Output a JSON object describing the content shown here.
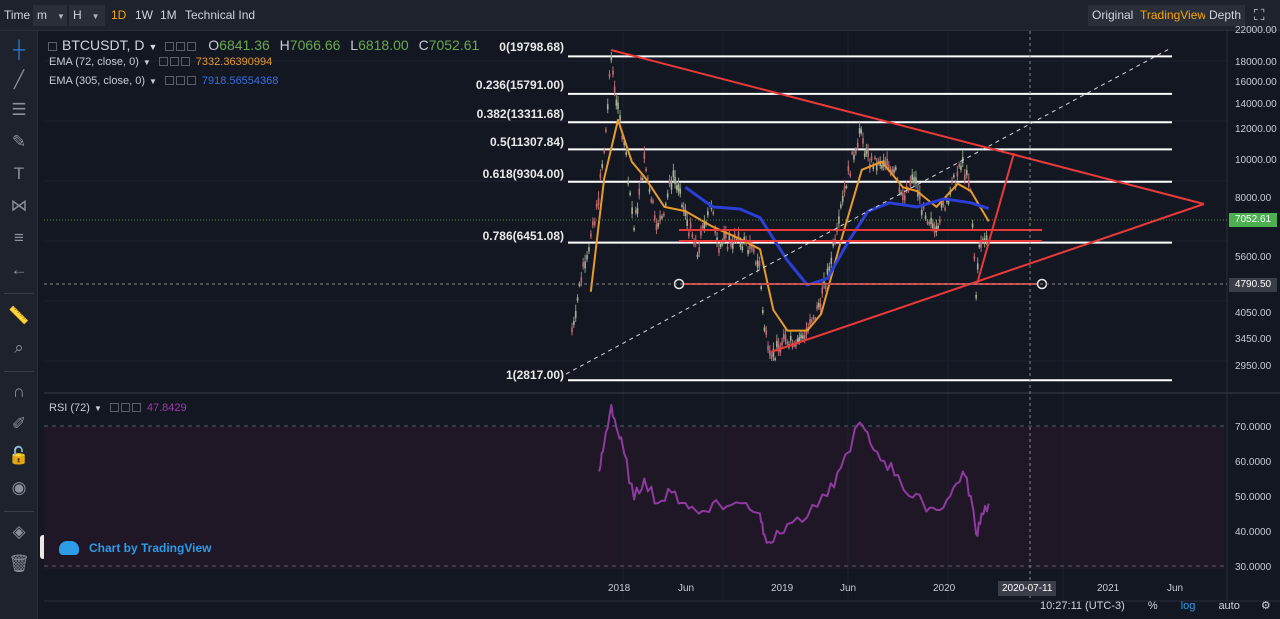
{
  "toolbar": {
    "time": "Time",
    "interval_minute": "m",
    "interval_hour": "H",
    "interval_day": "1D",
    "interval_week": "1W",
    "interval_month": "1M",
    "indicators": "Technical Ind",
    "view_original": "Original",
    "view_tradingview": "TradingView",
    "view_depth": "Depth"
  },
  "legend": {
    "symbol": "BTCUSDT, D",
    "open_label": "O",
    "open_value": "6841.36",
    "high_label": "H",
    "high_value": "7066.66",
    "low_label": "L",
    "low_value": "6818.00",
    "close_label": "C",
    "close_value": "7052.61",
    "ema1_label": "EMA (72, close, 0)",
    "ema1_value": "7332.36390994",
    "ema2_label": "EMA (305, close, 0)",
    "ema2_value": "7918.56554368",
    "rsi_label": "RSI (72)",
    "rsi_value": "47.8429"
  },
  "fib_labels": [
    "0(19798.68)",
    "0.236(15791.00)",
    "0.382(13311.68)",
    "0.5(11307.84)",
    "0.618(9304.00)",
    "0.786(6451.08)",
    "1(2817.00)"
  ],
  "price_axis": [
    "22000.00",
    "18000.00",
    "16000.00",
    "14000.00",
    "12000.00",
    "10000.00",
    "8000.00",
    "5600.00",
    "4050.00",
    "3450.00",
    "2950.00"
  ],
  "rsi_axis": [
    "70.0000",
    "60.0000",
    "50.0000",
    "40.0000",
    "30.0000"
  ],
  "time_axis": [
    "2018",
    "Jun",
    "2019",
    "Jun",
    "2020",
    "2021",
    "Jun"
  ],
  "last_price": "7052.61",
  "crosshair_price": "4790.50",
  "crosshair_date": "2020-07-11",
  "watermark": "Chart by TradingView",
  "status": {
    "clock": "10:27:11 (UTC-3)",
    "percent": "%",
    "log": "log",
    "auto": "auto"
  },
  "colors": {
    "background": "#131722",
    "ema72": "#e89b2c",
    "ema305": "#2b3fd6",
    "fib": "#ffffff",
    "trendlines": "#e83a3a",
    "rsi": "#8e3a9e",
    "last_price_tag": "#4caf50",
    "active_text": "#f7a600"
  },
  "chart_data": {
    "type": "candlestick",
    "y_scale": "log",
    "ylim": [
      2600,
      22000
    ],
    "x_range": [
      "2017-08",
      "2021-07"
    ],
    "price_series": [
      {
        "x": "2017-09-20",
        "close": 3800
      },
      {
        "x": "2017-10-15",
        "close": 5600
      },
      {
        "x": "2017-11-10",
        "close": 7200
      },
      {
        "x": "2017-12-01",
        "close": 11000
      },
      {
        "x": "2017-12-17",
        "close": 19500
      },
      {
        "x": "2018-01-01",
        "close": 14000
      },
      {
        "x": "2018-01-15",
        "close": 12000
      },
      {
        "x": "2018-02-06",
        "close": 7000
      },
      {
        "x": "2018-03-01",
        "close": 10500
      },
      {
        "x": "2018-04-01",
        "close": 7000
      },
      {
        "x": "2018-05-05",
        "close": 9700
      },
      {
        "x": "2018-06-01",
        "close": 7500
      },
      {
        "x": "2018-06-28",
        "close": 6000
      },
      {
        "x": "2018-07-25",
        "close": 8200
      },
      {
        "x": "2018-08-15",
        "close": 6400
      },
      {
        "x": "2018-09-15",
        "close": 6500
      },
      {
        "x": "2018-10-15",
        "close": 6400
      },
      {
        "x": "2018-11-14",
        "close": 5600
      },
      {
        "x": "2018-11-25",
        "close": 3800
      },
      {
        "x": "2018-12-15",
        "close": 3250
      },
      {
        "x": "2019-01-15",
        "close": 3600
      },
      {
        "x": "2019-02-15",
        "close": 3600
      },
      {
        "x": "2019-03-15",
        "close": 4000
      },
      {
        "x": "2019-04-15",
        "close": 5200
      },
      {
        "x": "2019-05-15",
        "close": 8200
      },
      {
        "x": "2019-06-26",
        "close": 12500
      },
      {
        "x": "2019-07-15",
        "close": 10500
      },
      {
        "x": "2019-08-15",
        "close": 10100
      },
      {
        "x": "2019-09-15",
        "close": 10200
      },
      {
        "x": "2019-10-01",
        "close": 8200
      },
      {
        "x": "2019-10-26",
        "close": 9500
      },
      {
        "x": "2019-11-25",
        "close": 7000
      },
      {
        "x": "2019-12-15",
        "close": 7200
      },
      {
        "x": "2020-01-15",
        "close": 8800
      },
      {
        "x": "2020-02-12",
        "close": 10300
      },
      {
        "x": "2020-03-01",
        "close": 8600
      },
      {
        "x": "2020-03-13",
        "close": 4800
      },
      {
        "x": "2020-03-20",
        "close": 6200
      },
      {
        "x": "2020-04-01",
        "close": 6600
      },
      {
        "x": "2020-04-10",
        "close": 7052.61
      }
    ],
    "ema72": [
      {
        "x": "2017-11-01",
        "close": 4800
      },
      {
        "x": "2017-12-01",
        "close": 9500
      },
      {
        "x": "2018-01-01",
        "close": 13500
      },
      {
        "x": "2018-02-01",
        "close": 10500
      },
      {
        "x": "2018-03-01",
        "close": 9600
      },
      {
        "x": "2018-04-15",
        "close": 8000
      },
      {
        "x": "2018-06-01",
        "close": 7800
      },
      {
        "x": "2018-08-01",
        "close": 7100
      },
      {
        "x": "2018-10-01",
        "close": 6600
      },
      {
        "x": "2018-11-15",
        "close": 6200
      },
      {
        "x": "2018-12-15",
        "close": 4300
      },
      {
        "x": "2019-01-15",
        "close": 3800
      },
      {
        "x": "2019-03-01",
        "close": 3800
      },
      {
        "x": "2019-04-01",
        "close": 4200
      },
      {
        "x": "2019-05-15",
        "close": 6500
      },
      {
        "x": "2019-07-01",
        "close": 10000
      },
      {
        "x": "2019-08-15",
        "close": 10500
      },
      {
        "x": "2019-10-01",
        "close": 9000
      },
      {
        "x": "2019-11-01",
        "close": 8800
      },
      {
        "x": "2019-12-15",
        "close": 8000
      },
      {
        "x": "2020-02-01",
        "close": 9200
      },
      {
        "x": "2020-03-01",
        "close": 8800
      },
      {
        "x": "2020-04-10",
        "close": 7332
      }
    ],
    "ema305": [
      {
        "x": "2018-06-01",
        "close": 9000
      },
      {
        "x": "2018-08-01",
        "close": 8000
      },
      {
        "x": "2018-10-01",
        "close": 7900
      },
      {
        "x": "2018-11-15",
        "close": 7500
      },
      {
        "x": "2019-01-15",
        "close": 5800
      },
      {
        "x": "2019-03-01",
        "close": 5000
      },
      {
        "x": "2019-04-15",
        "close": 5200
      },
      {
        "x": "2019-06-01",
        "close": 6500
      },
      {
        "x": "2019-07-15",
        "close": 7800
      },
      {
        "x": "2019-09-01",
        "close": 8200
      },
      {
        "x": "2019-11-01",
        "close": 8000
      },
      {
        "x": "2020-01-01",
        "close": 8400
      },
      {
        "x": "2020-03-01",
        "close": 8200
      },
      {
        "x": "2020-04-10",
        "close": 7918
      }
    ],
    "fib_levels": [
      {
        "level": 0,
        "price": 19798.68
      },
      {
        "level": 0.236,
        "price": 15791.0
      },
      {
        "level": 0.382,
        "price": 13311.68
      },
      {
        "level": 0.5,
        "price": 11307.84
      },
      {
        "level": 0.618,
        "price": 9304.0
      },
      {
        "level": 0.786,
        "price": 6451.08
      },
      {
        "level": 1,
        "price": 2817.0
      }
    ],
    "rsi": {
      "ylim": [
        27,
        77
      ],
      "bands": [
        70,
        30
      ],
      "values": [
        {
          "x": "2017-11-20",
          "v": 57
        },
        {
          "x": "2017-12-01",
          "v": 65
        },
        {
          "x": "2017-12-17",
          "v": 76
        },
        {
          "x": "2018-01-01",
          "v": 68
        },
        {
          "x": "2018-01-15",
          "v": 62
        },
        {
          "x": "2018-02-06",
          "v": 49
        },
        {
          "x": "2018-03-01",
          "v": 55
        },
        {
          "x": "2018-04-01",
          "v": 48
        },
        {
          "x": "2018-05-01",
          "v": 51
        },
        {
          "x": "2018-06-01",
          "v": 48
        },
        {
          "x": "2018-07-01",
          "v": 45
        },
        {
          "x": "2018-08-01",
          "v": 48
        },
        {
          "x": "2018-09-01",
          "v": 47
        },
        {
          "x": "2018-10-15",
          "v": 48
        },
        {
          "x": "2018-11-15",
          "v": 45
        },
        {
          "x": "2018-11-25",
          "v": 39
        },
        {
          "x": "2018-12-15",
          "v": 37
        },
        {
          "x": "2019-01-15",
          "v": 42
        },
        {
          "x": "2019-03-01",
          "v": 44
        },
        {
          "x": "2019-04-15",
          "v": 50
        },
        {
          "x": "2019-05-15",
          "v": 58
        },
        {
          "x": "2019-06-26",
          "v": 71
        },
        {
          "x": "2019-07-20",
          "v": 65
        },
        {
          "x": "2019-08-20",
          "v": 60
        },
        {
          "x": "2019-09-20",
          "v": 56
        },
        {
          "x": "2019-10-15",
          "v": 50
        },
        {
          "x": "2019-11-15",
          "v": 48
        },
        {
          "x": "2019-12-15",
          "v": 46
        },
        {
          "x": "2020-01-15",
          "v": 50
        },
        {
          "x": "2020-02-12",
          "v": 57
        },
        {
          "x": "2020-03-01",
          "v": 50
        },
        {
          "x": "2020-03-13",
          "v": 39
        },
        {
          "x": "2020-03-25",
          "v": 45
        },
        {
          "x": "2020-04-10",
          "v": 47.84
        }
      ]
    }
  }
}
